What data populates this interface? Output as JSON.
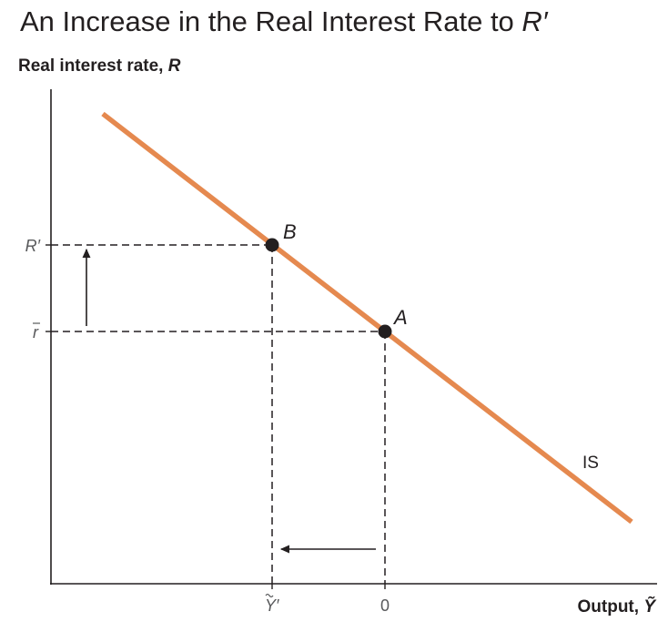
{
  "title": {
    "text": "An Increase in the Real Interest Rate to ",
    "symbol": "R′"
  },
  "axes": {
    "y_label": {
      "text": "Real interest rate, ",
      "symbol": "R"
    },
    "x_label": {
      "text": "Output, ",
      "symbol": "Ỹ"
    }
  },
  "ticks": {
    "y_high": "R′",
    "y_low_base": "r",
    "x_left_base": "Y",
    "x_left_prime": "′",
    "x_zero": "0"
  },
  "points": {
    "a": "A",
    "b": "B"
  },
  "curve": {
    "label": "IS",
    "color": "#e5894f"
  },
  "colors": {
    "axis": "#231f20",
    "dashes": "#231f20",
    "points": "#231f20"
  }
}
